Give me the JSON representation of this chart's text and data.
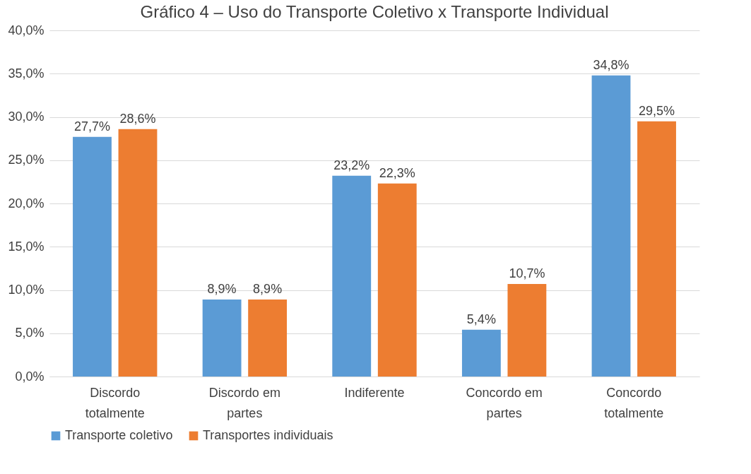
{
  "chart_data": {
    "type": "bar",
    "title": "Gráfico 4 – Uso do Transporte Coletivo x Transporte Individual",
    "categories": [
      "Discordo totalmente",
      "Discordo em partes",
      "Indiferente",
      "Concordo em partes",
      "Concordo totalmente"
    ],
    "series": [
      {
        "name": "Transporte coletivo",
        "color": "#5b9bd5",
        "values": [
          27.7,
          8.9,
          23.2,
          5.4,
          34.8
        ],
        "value_labels": [
          "27,7%",
          "8,9%",
          "23,2%",
          "5,4%",
          "34,8%"
        ]
      },
      {
        "name": "Transportes individuais",
        "color": "#ed7d31",
        "values": [
          28.6,
          8.9,
          22.3,
          10.7,
          29.5
        ],
        "value_labels": [
          "28,6%",
          "8,9%",
          "22,3%",
          "10,7%",
          "29,5%"
        ]
      }
    ],
    "ylim": [
      0,
      40
    ],
    "yticks": [
      {
        "value": 0,
        "label": "0,0%"
      },
      {
        "value": 5,
        "label": "5,0%"
      },
      {
        "value": 10,
        "label": "10,0%"
      },
      {
        "value": 15,
        "label": "15,0%"
      },
      {
        "value": 20,
        "label": "20,0%"
      },
      {
        "value": 25,
        "label": "25,0%"
      },
      {
        "value": 30,
        "label": "30,0%"
      },
      {
        "value": 35,
        "label": "35,0%"
      },
      {
        "value": 40,
        "label": "40,0%"
      }
    ],
    "grid": "y",
    "legend": "bottom"
  }
}
